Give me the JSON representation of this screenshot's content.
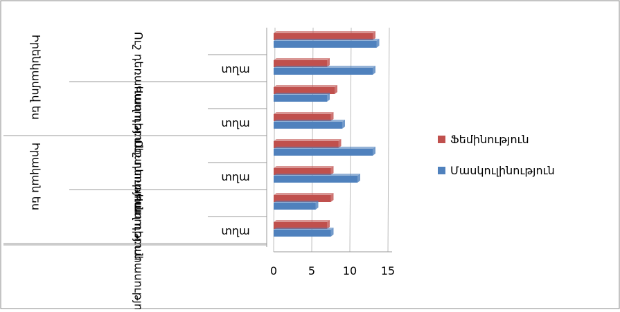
{
  "chart_data": {
    "type": "bar",
    "groups": [
      {
        "name": "Իրենկամով ես",
        "subgroups": [
          {
            "name": "Ուշ դեռահասություն",
            "categories": [
              null,
              "տղա"
            ]
          },
          {
            "name": "Վաղ դեռահասություն",
            "categories": [
              null,
              "տղա"
            ]
          }
        ]
      },
      {
        "name": "Իրական ես",
        "subgroups": [
          {
            "name": "Ուշ դեռահասություն",
            "categories": [
              null,
              "տղա"
            ]
          },
          {
            "name": "Վաղ դեռահասություն",
            "categories": [
              null,
              "տղա"
            ]
          }
        ]
      }
    ],
    "series": [
      {
        "name": "Ֆեմինություն",
        "color": "#c0504d",
        "values": [
          13,
          7,
          8,
          7.5,
          8.5,
          7.5,
          7.5,
          7
        ]
      },
      {
        "name": "Մասկուլինություն",
        "color": "#4f81bd",
        "values": [
          13.5,
          13,
          7,
          9,
          13,
          11,
          5.5,
          7.5
        ]
      }
    ],
    "xlim": [
      0,
      15
    ],
    "xticks": [
      0,
      5,
      10,
      15
    ],
    "grid": true
  }
}
